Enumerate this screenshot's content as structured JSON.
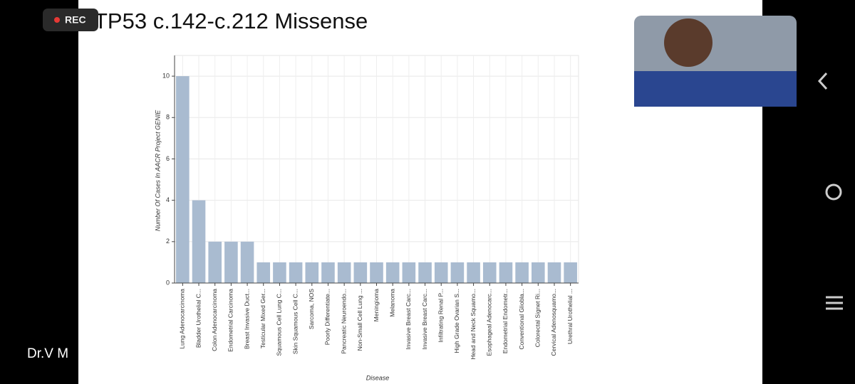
{
  "recording": {
    "badge": "REC"
  },
  "presenter": {
    "name": "Dr.V M"
  },
  "chart_data": {
    "type": "bar",
    "title": "TP53 c.142-c.212 Missense",
    "x_label": "Disease",
    "y_label": "Number Of Cases In AACR Project GENIE",
    "categories": [
      "Lung Adenocarcinoma",
      "Bladder Urothelial C...",
      "Colon Adenocarcinoma",
      "Endometrial Carcinoma",
      "Breast Invasive Duct...",
      "Testicular Mixed Ger...",
      "Squamous Cell Lung C...",
      "Skin Squamous Cell C...",
      "Sarcoma, NOS",
      "Poorly Differentiate...",
      "Pancreatic Neuroendo...",
      "Non-Small Cell Lung ...",
      "Meningioma",
      "Melanoma",
      "Invasive Breast Carc...",
      "Invasive Breast Carc...",
      "Infiltrating Renal P...",
      "High Grade Ovarian S...",
      "Head and Neck Squamo...",
      "Esophageal Adenocarc...",
      "Endometrial Endometr...",
      "Conventional Gliobla...",
      "Colorectal Signet Ri...",
      "Cervical Adenosquamo...",
      "Urethral Urothelial ..."
    ],
    "values": [
      10,
      4,
      2,
      2,
      2,
      1,
      1,
      1,
      1,
      1,
      1,
      1,
      1,
      1,
      1,
      1,
      1,
      1,
      1,
      1,
      1,
      1,
      1,
      1,
      1
    ],
    "color": "#a9bbd0",
    "ylim": [
      0,
      11
    ],
    "yticks": [
      0,
      2,
      4,
      6,
      8,
      10
    ],
    "grid": true
  }
}
